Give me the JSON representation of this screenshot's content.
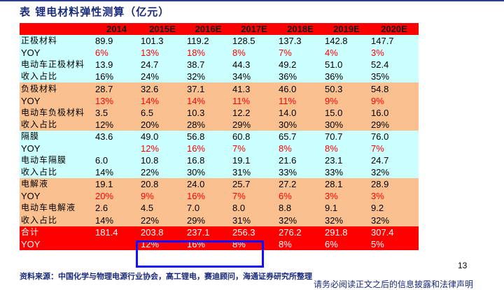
{
  "title": "表 锂电材料弹性测算（亿元）",
  "header": [
    "",
    "2014",
    "2015E",
    "2016E",
    "2017E",
    "2018E",
    "2019E",
    "2020E"
  ],
  "rows": [
    {
      "label": "正极材料",
      "values": [
        "89.9",
        "101.3",
        "119.2",
        "128.5",
        "137.3",
        "142.8",
        "147.7"
      ],
      "style": "cyan",
      "value_color": "black"
    },
    {
      "label": "YOY",
      "values": [
        "6%",
        "13%",
        "18%",
        "8%",
        "7%",
        "4%",
        "3%"
      ],
      "style": "cyan",
      "value_color": "red"
    },
    {
      "label": "电动车正极材料",
      "values": [
        "13.9",
        "24.7",
        "38.7",
        "44.3",
        "49.2",
        "51.0",
        "52.4"
      ],
      "style": "cyan",
      "value_color": "black"
    },
    {
      "label": "收入占比",
      "values": [
        "16%",
        "24%",
        "32%",
        "34%",
        "36%",
        "36%",
        "35%"
      ],
      "style": "cyan",
      "value_color": "black"
    },
    {
      "label": "负极材料",
      "values": [
        "28.7",
        "32.6",
        "37.1",
        "41.3",
        "46.0",
        "50.3",
        "54.8"
      ],
      "style": "peach",
      "value_color": "black"
    },
    {
      "label": "YOY",
      "values": [
        "13%",
        "14%",
        "14%",
        "11%",
        "11%",
        "9%",
        "9%"
      ],
      "style": "peach",
      "value_color": "red"
    },
    {
      "label": "电动车负极材料",
      "values": [
        "3.5",
        "6.5",
        "10.3",
        "12.2",
        "14.0",
        "15.0",
        "16.0"
      ],
      "style": "peach",
      "value_color": "black"
    },
    {
      "label": "收入占比",
      "values": [
        "12%",
        "20%",
        "28%",
        "29%",
        "30%",
        "30%",
        "29%"
      ],
      "style": "peach",
      "value_color": "black"
    },
    {
      "label": "隔膜",
      "values": [
        "43.6",
        "49.0",
        "56.8",
        "60.8",
        "65.7",
        "70.7",
        "76.0"
      ],
      "style": "cyan",
      "value_color": "black"
    },
    {
      "label": "YOY",
      "values": [
        "",
        "12%",
        "16%",
        "7%",
        "8%",
        "8%",
        "7%"
      ],
      "style": "cyan",
      "value_color": "red"
    },
    {
      "label": "电动车隔膜",
      "values": [
        "6.0",
        "10.8",
        "16.8",
        "19.1",
        "21.6",
        "23.1",
        "24.7"
      ],
      "style": "cyan",
      "value_color": "black"
    },
    {
      "label": "收入占比",
      "values": [
        "14%",
        "22%",
        "30%",
        "31%",
        "33%",
        "33%",
        "32%"
      ],
      "style": "cyan",
      "value_color": "black"
    },
    {
      "label": "电解液",
      "values": [
        "19.1",
        "20.8",
        "24.0",
        "25.7",
        "27.2",
        "28.1",
        "28.9"
      ],
      "style": "peach",
      "value_color": "black"
    },
    {
      "label": "YOY",
      "values": [
        "20%",
        "9%",
        "16%",
        "7%",
        "6%",
        "3%",
        "3%"
      ],
      "style": "peach",
      "value_color": "red"
    },
    {
      "label": "电动车电解液",
      "values": [
        "2.6",
        "4.5",
        "7.0",
        "8.0",
        "8.8",
        "9.1",
        "9.2"
      ],
      "style": "peach",
      "value_color": "black"
    },
    {
      "label": "收入占比",
      "values": [
        "14%",
        "22%",
        "29%",
        "31%",
        "32%",
        "32%",
        "32%"
      ],
      "style": "peach",
      "value_color": "black"
    },
    {
      "label": "合计",
      "values": [
        "181.4",
        "203.8",
        "237.1",
        "256.3",
        "276.2",
        "291.8",
        "307.4"
      ],
      "style": "total",
      "value_color": "white"
    },
    {
      "label": "YOY",
      "values": [
        "",
        "12%",
        "16%",
        "8%",
        "8%",
        "6%",
        "5%"
      ],
      "style": "total",
      "value_color": "white"
    }
  ],
  "source": "资料来源：中国化学与物理电源行业协会，高工锂电，赛迪顾问，海通证券研究所整理",
  "page_number": "13",
  "disclaimer": "请务必阅读正文之后的信息披露和法律声明",
  "colors": {
    "header_red": "#ff0000",
    "cyan_band": "#ccffff",
    "peach_band": "#fac090",
    "title_blue": "#1a2a7a",
    "highlight_blue": "#1010ff"
  }
}
